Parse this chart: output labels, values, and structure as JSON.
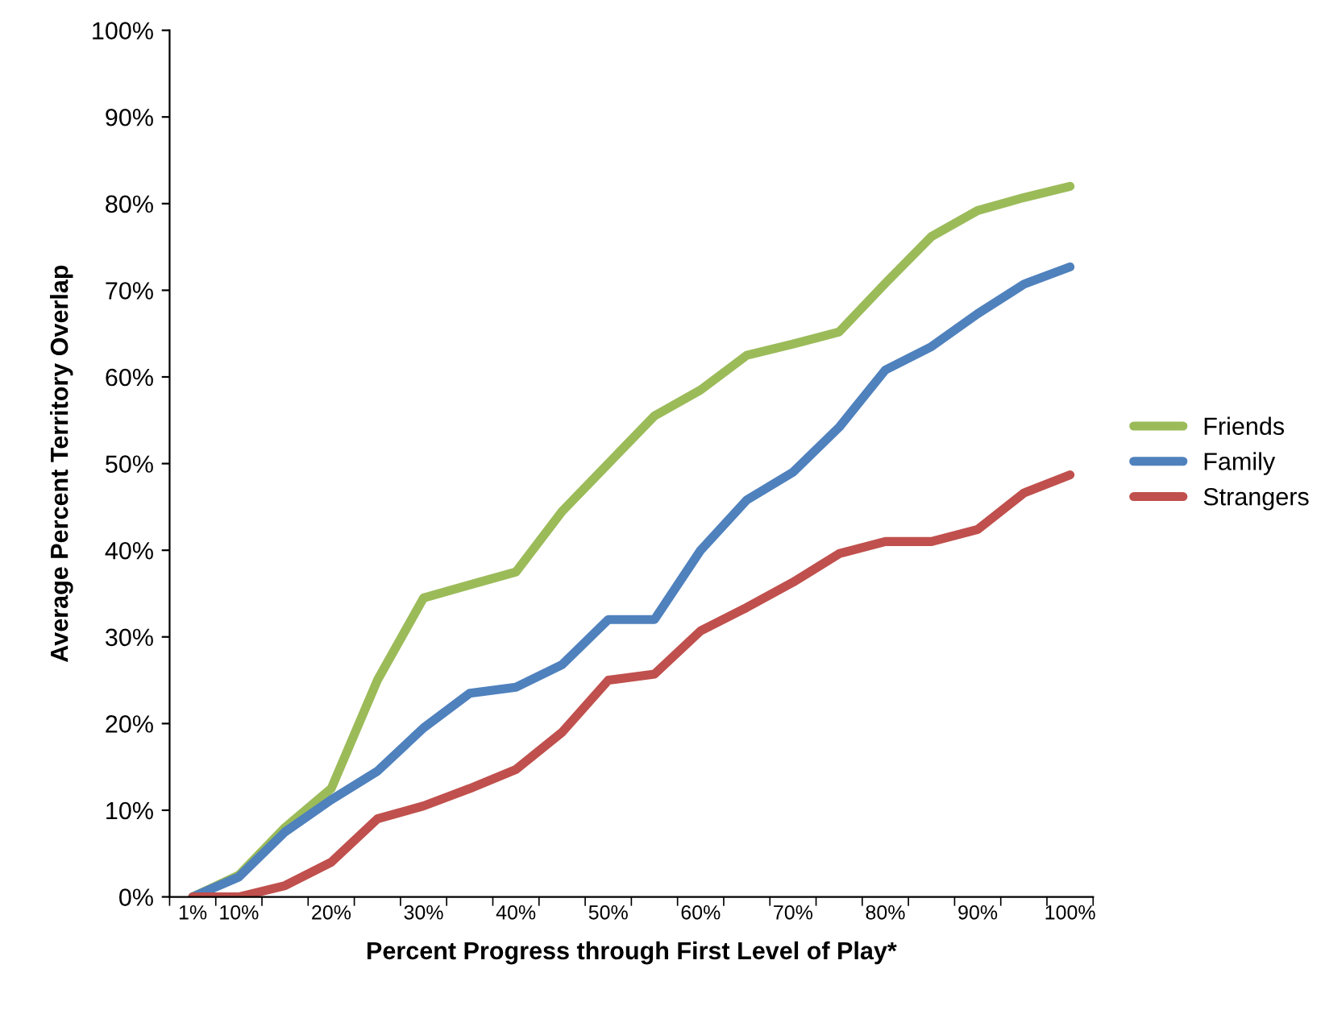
{
  "chart_data": {
    "type": "line",
    "xlabel": "Percent Progress through First Level of Play*",
    "ylabel": "Average Percent Territory Overlap",
    "categories": [
      "1%",
      "10%",
      null,
      "20%",
      null,
      "30%",
      null,
      "40%",
      null,
      "50%",
      null,
      "60%",
      null,
      "70%",
      null,
      "80%",
      null,
      "90%",
      null,
      "100%"
    ],
    "series": [
      {
        "name": "Friends",
        "color": "#9bbb59",
        "values": [
          0,
          2.5,
          8,
          12.5,
          25,
          34.5,
          36,
          37.5,
          44.5,
          50,
          55.5,
          58.5,
          62.5,
          63.8,
          65.2,
          70.8,
          76.2,
          79.2,
          80.7,
          82
        ]
      },
      {
        "name": "Family",
        "color": "#4f81bd",
        "values": [
          0,
          2.3,
          7.5,
          11.2,
          14.5,
          19.5,
          23.5,
          24.2,
          26.8,
          32,
          32,
          40,
          45.8,
          49,
          54.2,
          60.8,
          63.5,
          67.3,
          70.7,
          72.7
        ]
      },
      {
        "name": "Strangers",
        "color": "#c0504d",
        "values": [
          0,
          0,
          1.3,
          4,
          9,
          10.5,
          12.5,
          14.7,
          19,
          25,
          25.7,
          30.7,
          33.4,
          36.3,
          39.6,
          41,
          41,
          42.4,
          46.6,
          48.7
        ]
      }
    ],
    "ylim": [
      0,
      100
    ],
    "yticks": [
      {
        "value": 0,
        "label": "0%"
      },
      {
        "value": 10,
        "label": "10%"
      },
      {
        "value": 20,
        "label": "20%"
      },
      {
        "value": 30,
        "label": "30%"
      },
      {
        "value": 40,
        "label": "40%"
      },
      {
        "value": 50,
        "label": "50%"
      },
      {
        "value": 60,
        "label": "60%"
      },
      {
        "value": 70,
        "label": "70%"
      },
      {
        "value": 80,
        "label": "80%"
      },
      {
        "value": 90,
        "label": "90%"
      },
      {
        "value": 100,
        "label": "100%"
      }
    ],
    "grid": false,
    "legend": "right",
    "marker": "none",
    "line_style": "solid"
  }
}
